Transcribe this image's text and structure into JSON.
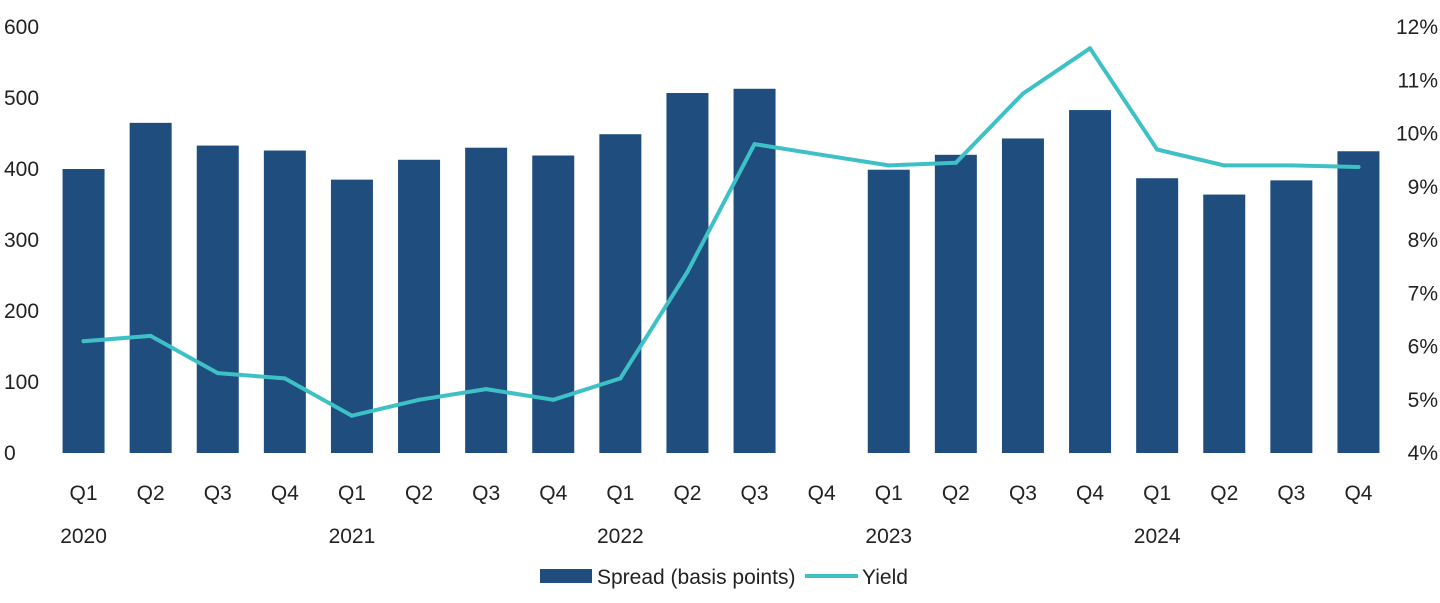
{
  "chart_data": {
    "type": "bar",
    "title": "",
    "xlabel": "",
    "ylabel": "",
    "categories": [
      "Q1",
      "Q2",
      "Q3",
      "Q4",
      "Q1",
      "Q2",
      "Q3",
      "Q4",
      "Q1",
      "Q2",
      "Q3",
      "Q4",
      "Q1",
      "Q2",
      "Q3",
      "Q4",
      "Q1",
      "Q2",
      "Q3",
      "Q4"
    ],
    "years": [
      {
        "label": "2020",
        "start_index": 0
      },
      {
        "label": "2021",
        "start_index": 4
      },
      {
        "label": "2022",
        "start_index": 8
      },
      {
        "label": "2023",
        "start_index": 12
      },
      {
        "label": "2024",
        "start_index": 16
      }
    ],
    "series": [
      {
        "name": "Spread (basis points)",
        "type": "bar",
        "axis": "left",
        "color": "#1f4e7e",
        "values": [
          400,
          465,
          433,
          426,
          385,
          413,
          430,
          419,
          449,
          507,
          513,
          null,
          399,
          420,
          443,
          483,
          387,
          364,
          384,
          425
        ]
      },
      {
        "name": "Yield",
        "type": "line",
        "axis": "right",
        "color": "#3ec1c6",
        "values": [
          6.1,
          6.2,
          5.5,
          5.4,
          4.7,
          5.0,
          5.2,
          5.0,
          5.4,
          7.4,
          9.8,
          9.6,
          9.4,
          9.45,
          10.75,
          11.6,
          9.7,
          9.4,
          9.4,
          9.37
        ]
      }
    ],
    "y_left": {
      "min": 0,
      "max": 600,
      "ticks": [
        0,
        100,
        200,
        300,
        400,
        500,
        600
      ],
      "tick_labels": [
        "0",
        "100",
        "200",
        "300",
        "400",
        "500",
        "600"
      ]
    },
    "y_right": {
      "min": 4,
      "max": 12,
      "ticks": [
        4,
        5,
        6,
        7,
        8,
        9,
        10,
        11,
        12
      ],
      "tick_labels": [
        "4%",
        "5%",
        "6%",
        "7%",
        "8%",
        "9%",
        "10%",
        "11%",
        "12%"
      ]
    },
    "grid": false,
    "legend": {
      "position": "bottom-center",
      "entries": [
        "Spread (basis points)",
        "Yield"
      ]
    }
  }
}
